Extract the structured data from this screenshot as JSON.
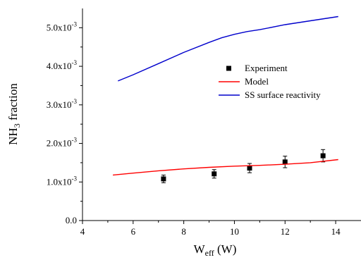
{
  "chart_data": {
    "type": "line",
    "xlabel": {
      "main": "W",
      "sub": "eff",
      "suffix": " (W)"
    },
    "ylabel": {
      "main": "NH",
      "sub": "3",
      "suffix": " fraction"
    },
    "xlim": [
      4,
      15
    ],
    "ylim": [
      0,
      0.0055
    ],
    "x_ticks": [
      4,
      6,
      8,
      10,
      12,
      14
    ],
    "x_tick_labels": [
      "4",
      "6",
      "8",
      "10",
      "12",
      "14"
    ],
    "y_ticks": [
      0,
      0.001,
      0.002,
      0.003,
      0.004,
      0.005
    ],
    "y_tick_labels": [
      {
        "mantissa": "0.0",
        "exp": ""
      },
      {
        "mantissa": "1.0x10",
        "exp": "-3"
      },
      {
        "mantissa": "2.0x10",
        "exp": "-3"
      },
      {
        "mantissa": "3.0x10",
        "exp": "-3"
      },
      {
        "mantissa": "4.0x10",
        "exp": "-3"
      },
      {
        "mantissa": "5.0x10",
        "exp": "-3"
      }
    ],
    "grid": false,
    "legend_position": "right, upper-middle",
    "series": [
      {
        "name": "Experiment",
        "kind": "scatter",
        "marker": "square",
        "color": "#000000",
        "points": [
          {
            "x": 7.2,
            "y": 0.00108,
            "err": 0.0001
          },
          {
            "x": 9.2,
            "y": 0.00121,
            "err": 0.00011
          },
          {
            "x": 10.6,
            "y": 0.00136,
            "err": 0.00012
          },
          {
            "x": 12.0,
            "y": 0.00152,
            "err": 0.00015
          },
          {
            "x": 13.5,
            "y": 0.00168,
            "err": 0.00016
          }
        ]
      },
      {
        "name": "Model",
        "kind": "line",
        "color": "#ff0000",
        "points": [
          {
            "x": 5.2,
            "y": 0.00118
          },
          {
            "x": 6.0,
            "y": 0.00123
          },
          {
            "x": 7.0,
            "y": 0.00129
          },
          {
            "x": 8.0,
            "y": 0.00134
          },
          {
            "x": 9.0,
            "y": 0.00138
          },
          {
            "x": 10.0,
            "y": 0.00141
          },
          {
            "x": 11.0,
            "y": 0.00143
          },
          {
            "x": 12.0,
            "y": 0.00146
          },
          {
            "x": 13.0,
            "y": 0.0015
          },
          {
            "x": 14.1,
            "y": 0.00158
          }
        ]
      },
      {
        "name": "SS surface reactivity",
        "kind": "line",
        "color": "#0000cc",
        "points": [
          {
            "x": 5.4,
            "y": 0.00362
          },
          {
            "x": 6.0,
            "y": 0.00378
          },
          {
            "x": 7.0,
            "y": 0.00407
          },
          {
            "x": 8.0,
            "y": 0.00436
          },
          {
            "x": 9.0,
            "y": 0.00462
          },
          {
            "x": 9.5,
            "y": 0.00474
          },
          {
            "x": 10.0,
            "y": 0.00483
          },
          {
            "x": 10.5,
            "y": 0.0049
          },
          {
            "x": 11.0,
            "y": 0.00495
          },
          {
            "x": 12.0,
            "y": 0.00508
          },
          {
            "x": 13.0,
            "y": 0.00518
          },
          {
            "x": 14.1,
            "y": 0.00529
          }
        ]
      }
    ]
  }
}
